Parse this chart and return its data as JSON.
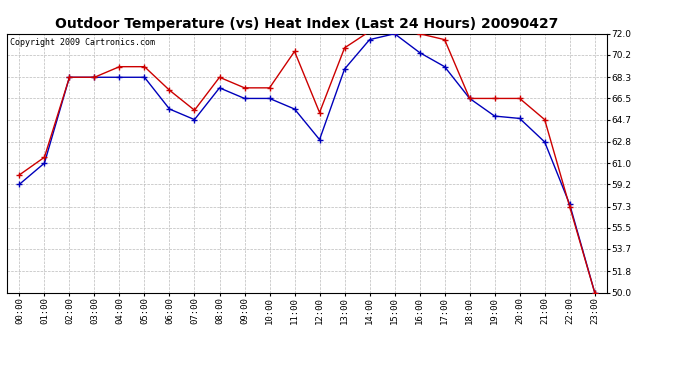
{
  "title": "Outdoor Temperature (vs) Heat Index (Last 24 Hours) 20090427",
  "copyright": "Copyright 2009 Cartronics.com",
  "x_labels": [
    "00:00",
    "01:00",
    "02:00",
    "03:00",
    "04:00",
    "05:00",
    "06:00",
    "07:00",
    "08:00",
    "09:00",
    "10:00",
    "11:00",
    "12:00",
    "13:00",
    "14:00",
    "15:00",
    "16:00",
    "17:00",
    "18:00",
    "19:00",
    "20:00",
    "21:00",
    "22:00",
    "23:00"
  ],
  "temp_blue": [
    59.2,
    61.0,
    68.3,
    68.3,
    68.3,
    68.3,
    65.6,
    64.7,
    67.4,
    66.5,
    66.5,
    65.6,
    63.0,
    69.0,
    71.5,
    72.0,
    70.4,
    69.2,
    66.5,
    65.0,
    64.8,
    62.8,
    57.5,
    50.0
  ],
  "heat_red": [
    60.0,
    61.5,
    68.3,
    68.3,
    69.2,
    69.2,
    67.2,
    65.5,
    68.3,
    67.4,
    67.4,
    70.5,
    65.3,
    70.8,
    72.2,
    72.2,
    72.0,
    71.5,
    66.5,
    66.5,
    66.5,
    64.7,
    57.3,
    50.0
  ],
  "ylim_min": 50.0,
  "ylim_max": 72.0,
  "yticks": [
    50.0,
    51.8,
    53.7,
    55.5,
    57.3,
    59.2,
    61.0,
    62.8,
    64.7,
    66.5,
    68.3,
    70.2,
    72.0
  ],
  "bg_color": "#ffffff",
  "grid_color": "#bbbbbb",
  "blue_color": "#0000bb",
  "red_color": "#cc0000",
  "title_fontsize": 10,
  "copyright_fontsize": 6,
  "tick_fontsize": 6.5
}
